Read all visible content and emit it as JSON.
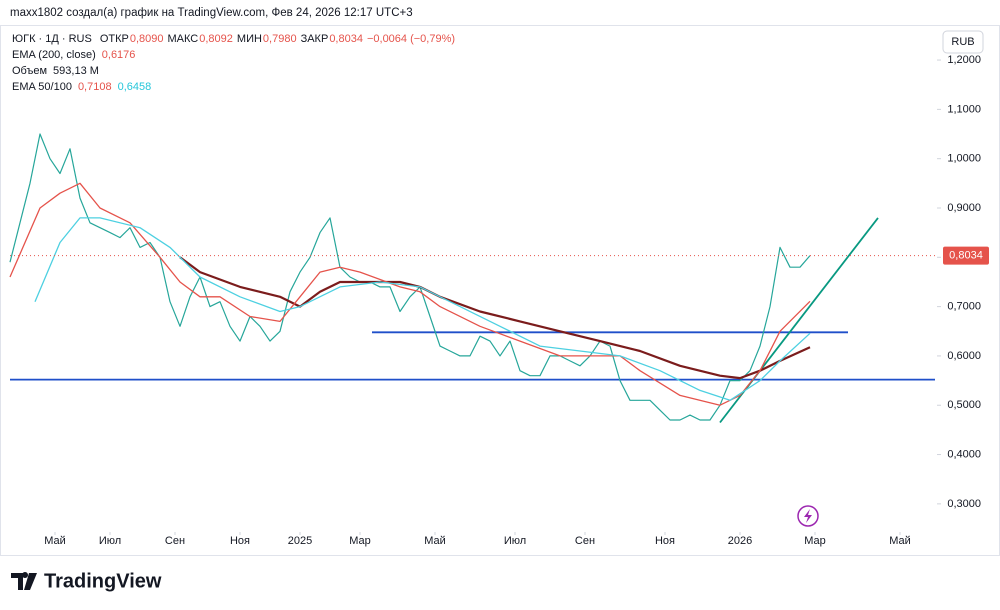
{
  "header": "maxx1802 создал(а) график на TradingView.com, Фев 24, 2026 12:17 UTC+3",
  "brand": "TradingView",
  "currency": "RUB",
  "chart_data": {
    "type": "line",
    "ohlc": [
      {
        "label": "ОТКР",
        "value": "0,8090"
      },
      {
        "label": "МАКС",
        "value": "0,8092"
      },
      {
        "label": "МИН",
        "value": "0,7980"
      },
      {
        "label": "ЗАКР",
        "value": "0,8034"
      }
    ],
    "change": "−0,0064 (−0,79%)",
    "volume": {
      "name": "Объем",
      "label": "593,13 M"
    },
    "last_price": {
      "value": 0.8034,
      "label": "0,8034"
    },
    "xlim": [
      0,
      185
    ],
    "ylim": [
      0.247,
      1.265
    ],
    "xticks": [
      {
        "value": 9,
        "label": "Май"
      },
      {
        "value": 20,
        "label": "Июл"
      },
      {
        "value": 33,
        "label": "Сен"
      },
      {
        "value": 46,
        "label": "Ноя"
      },
      {
        "value": 58,
        "label": "2025"
      },
      {
        "value": 70,
        "label": "Мар"
      },
      {
        "value": 85,
        "label": "Май"
      },
      {
        "value": 101,
        "label": "Июл"
      },
      {
        "value": 115,
        "label": "Сен"
      },
      {
        "value": 131,
        "label": "Ноя"
      },
      {
        "value": 146,
        "label": "2026"
      },
      {
        "value": 161,
        "label": "Мар"
      },
      {
        "value": 178,
        "label": "Май"
      }
    ],
    "yticks": [
      {
        "value": 0.3,
        "label": "0,3000"
      },
      {
        "value": 0.4,
        "label": "0,4000"
      },
      {
        "value": 0.5,
        "label": "0,5000"
      },
      {
        "value": 0.6,
        "label": "0,6000"
      },
      {
        "value": 0.7,
        "label": "0,7000"
      },
      {
        "value": 0.8,
        "label": "0,8000"
      },
      {
        "value": 0.9,
        "label": "0,9000"
      },
      {
        "value": 1.0,
        "label": "1,0000"
      },
      {
        "value": 1.1,
        "label": "1,1000"
      },
      {
        "value": 1.2,
        "label": "1,2000"
      }
    ],
    "series": [
      {
        "name": "ЮГК · 1Д · RUS",
        "color": "#26a69a",
        "x": [
          0,
          4,
          6,
          8,
          10,
          12,
          14,
          16,
          18,
          20,
          22,
          24,
          26,
          28,
          30,
          32,
          34,
          36,
          38,
          40,
          42,
          44,
          46,
          48,
          50,
          52,
          54,
          56,
          58,
          60,
          62,
          64,
          66,
          68,
          70,
          72,
          74,
          76,
          78,
          80,
          82,
          84,
          86,
          88,
          90,
          92,
          94,
          96,
          98,
          100,
          102,
          104,
          106,
          108,
          110,
          112,
          114,
          116,
          118,
          120,
          122,
          124,
          126,
          128,
          130,
          132,
          134,
          136,
          138,
          140,
          142,
          144,
          146,
          148,
          150,
          152,
          154,
          156,
          158,
          160
        ],
        "values": [
          0.79,
          0.95,
          1.05,
          1.0,
          0.97,
          1.02,
          0.92,
          0.87,
          0.86,
          0.85,
          0.84,
          0.86,
          0.82,
          0.83,
          0.8,
          0.71,
          0.66,
          0.72,
          0.76,
          0.7,
          0.71,
          0.66,
          0.63,
          0.68,
          0.66,
          0.63,
          0.65,
          0.73,
          0.77,
          0.8,
          0.85,
          0.88,
          0.78,
          0.76,
          0.75,
          0.75,
          0.74,
          0.74,
          0.69,
          0.72,
          0.74,
          0.68,
          0.62,
          0.61,
          0.6,
          0.6,
          0.64,
          0.63,
          0.6,
          0.63,
          0.57,
          0.56,
          0.56,
          0.6,
          0.6,
          0.59,
          0.58,
          0.6,
          0.63,
          0.62,
          0.55,
          0.51,
          0.51,
          0.51,
          0.49,
          0.47,
          0.47,
          0.48,
          0.47,
          0.47,
          0.5,
          0.55,
          0.55,
          0.57,
          0.62,
          0.7,
          0.82,
          0.78,
          0.78,
          0.8034
        ]
      },
      {
        "name": "EMA (200, close)",
        "color": "#7b1c1c",
        "last_label": "0,6176",
        "x": [
          34,
          38,
          46,
          54,
          58,
          62,
          66,
          70,
          78,
          82,
          86,
          94,
          102,
          110,
          118,
          126,
          134,
          142,
          146,
          150,
          154,
          160
        ],
        "values": [
          0.8,
          0.77,
          0.74,
          0.72,
          0.7,
          0.73,
          0.75,
          0.75,
          0.75,
          0.74,
          0.72,
          0.69,
          0.67,
          0.65,
          0.63,
          0.61,
          0.58,
          0.56,
          0.555,
          0.57,
          0.59,
          0.6176
        ]
      },
      {
        "name": "EMA 50/100",
        "lines": [
          {
            "color": "#e5534b",
            "last_label": "0,7108",
            "x": [
              0,
              6,
              10,
              14,
              18,
              24,
              30,
              34,
              38,
              42,
              48,
              54,
              58,
              62,
              66,
              70,
              78,
              82,
              86,
              94,
              102,
              110,
              118,
              122,
              126,
              134,
              142,
              146,
              150,
              154,
              160
            ],
            "values": [
              0.76,
              0.9,
              0.93,
              0.95,
              0.9,
              0.87,
              0.8,
              0.75,
              0.72,
              0.72,
              0.68,
              0.67,
              0.72,
              0.77,
              0.78,
              0.77,
              0.74,
              0.73,
              0.7,
              0.66,
              0.63,
              0.6,
              0.6,
              0.6,
              0.57,
              0.52,
              0.5,
              0.52,
              0.57,
              0.65,
              0.7108
            ]
          },
          {
            "color": "#4dd0e1",
            "last_label": "0,6458",
            "x": [
              5,
              10,
              14,
              18,
              26,
              32,
              38,
              46,
              54,
              58,
              66,
              74,
              82,
              90,
              98,
              106,
              114,
              122,
              130,
              138,
              144,
              150,
              154,
              160
            ],
            "values": [
              0.71,
              0.83,
              0.88,
              0.88,
              0.86,
              0.82,
              0.76,
              0.72,
              0.69,
              0.7,
              0.74,
              0.75,
              0.74,
              0.7,
              0.66,
              0.62,
              0.61,
              0.6,
              0.57,
              0.53,
              0.51,
              0.55,
              0.59,
              0.6458
            ]
          }
        ]
      }
    ],
    "drawings": [
      {
        "color": "#1f4fc9",
        "x": [
          0,
          185
        ],
        "values": [
          0.552,
          0.552
        ]
      },
      {
        "color": "#1f4fc9",
        "x": [
          72.4,
          167.6
        ],
        "values": [
          0.648,
          0.648
        ]
      },
      {
        "color": "#089981",
        "x": [
          142,
          173.6
        ],
        "values": [
          0.465,
          0.88
        ]
      }
    ]
  }
}
